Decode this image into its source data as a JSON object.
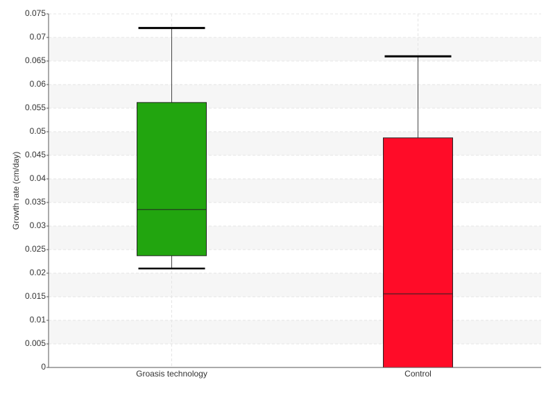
{
  "chart_data": {
    "type": "box",
    "y_label": "Growth rate (cm/day)",
    "categories": [
      "Groasis technology",
      "Control"
    ],
    "boxes": [
      {
        "min": 0.021,
        "q1": 0.0237,
        "median": 0.0335,
        "q3": 0.0562,
        "max": 0.072,
        "color": "#22a50f"
      },
      {
        "min": 0,
        "q1": 0,
        "median": 0.0156,
        "q3": 0.0487,
        "max": 0.066,
        "color": "#ff0c28"
      }
    ],
    "ylim": [
      0,
      0.075
    ],
    "yticks": [
      0,
      0.005,
      0.01,
      0.015,
      0.02,
      0.025,
      0.03,
      0.035,
      0.04,
      0.045,
      0.05,
      0.055,
      0.06,
      0.065,
      0.07,
      0.075
    ],
    "grid": true
  }
}
